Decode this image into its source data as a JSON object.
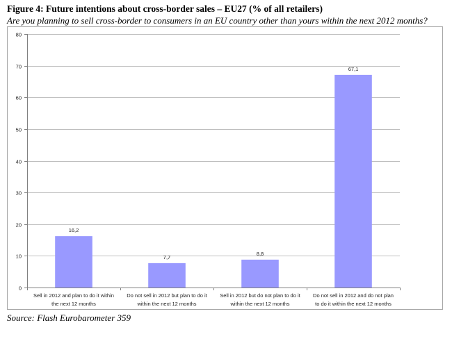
{
  "figure": {
    "title": "Figure 4: Future intentions about cross-border sales – EU27 (% of all retailers)",
    "subtitle": "Are you planning to sell cross-border to consumers in an EU country other than yours within the next 2012 months?",
    "source": "Source: Flash Eurobarometer 359"
  },
  "chart_data": {
    "type": "bar",
    "categories": [
      [
        "Sell in 2012 and plan to do it within",
        "the next 12 months"
      ],
      [
        "Do not sell in 2012 but plan to do it",
        "within the next 12 months"
      ],
      [
        "Sell in 2012 but do not plan to do it",
        "within the next 12 months"
      ],
      [
        "Do not sell in 2012 and do not plan",
        "to do it within the next 12 months"
      ]
    ],
    "values": [
      16.2,
      7.7,
      8.8,
      67.1
    ],
    "value_labels": [
      "16,2",
      "7,7",
      "8,8",
      "67,1"
    ],
    "ylim": [
      0,
      80
    ],
    "yticks": [
      "0",
      "10",
      "20",
      "30",
      "40",
      "50",
      "60",
      "70",
      "80"
    ],
    "grid": true,
    "bar_color": "#9999ff",
    "title": "",
    "xlabel": "",
    "ylabel": ""
  }
}
